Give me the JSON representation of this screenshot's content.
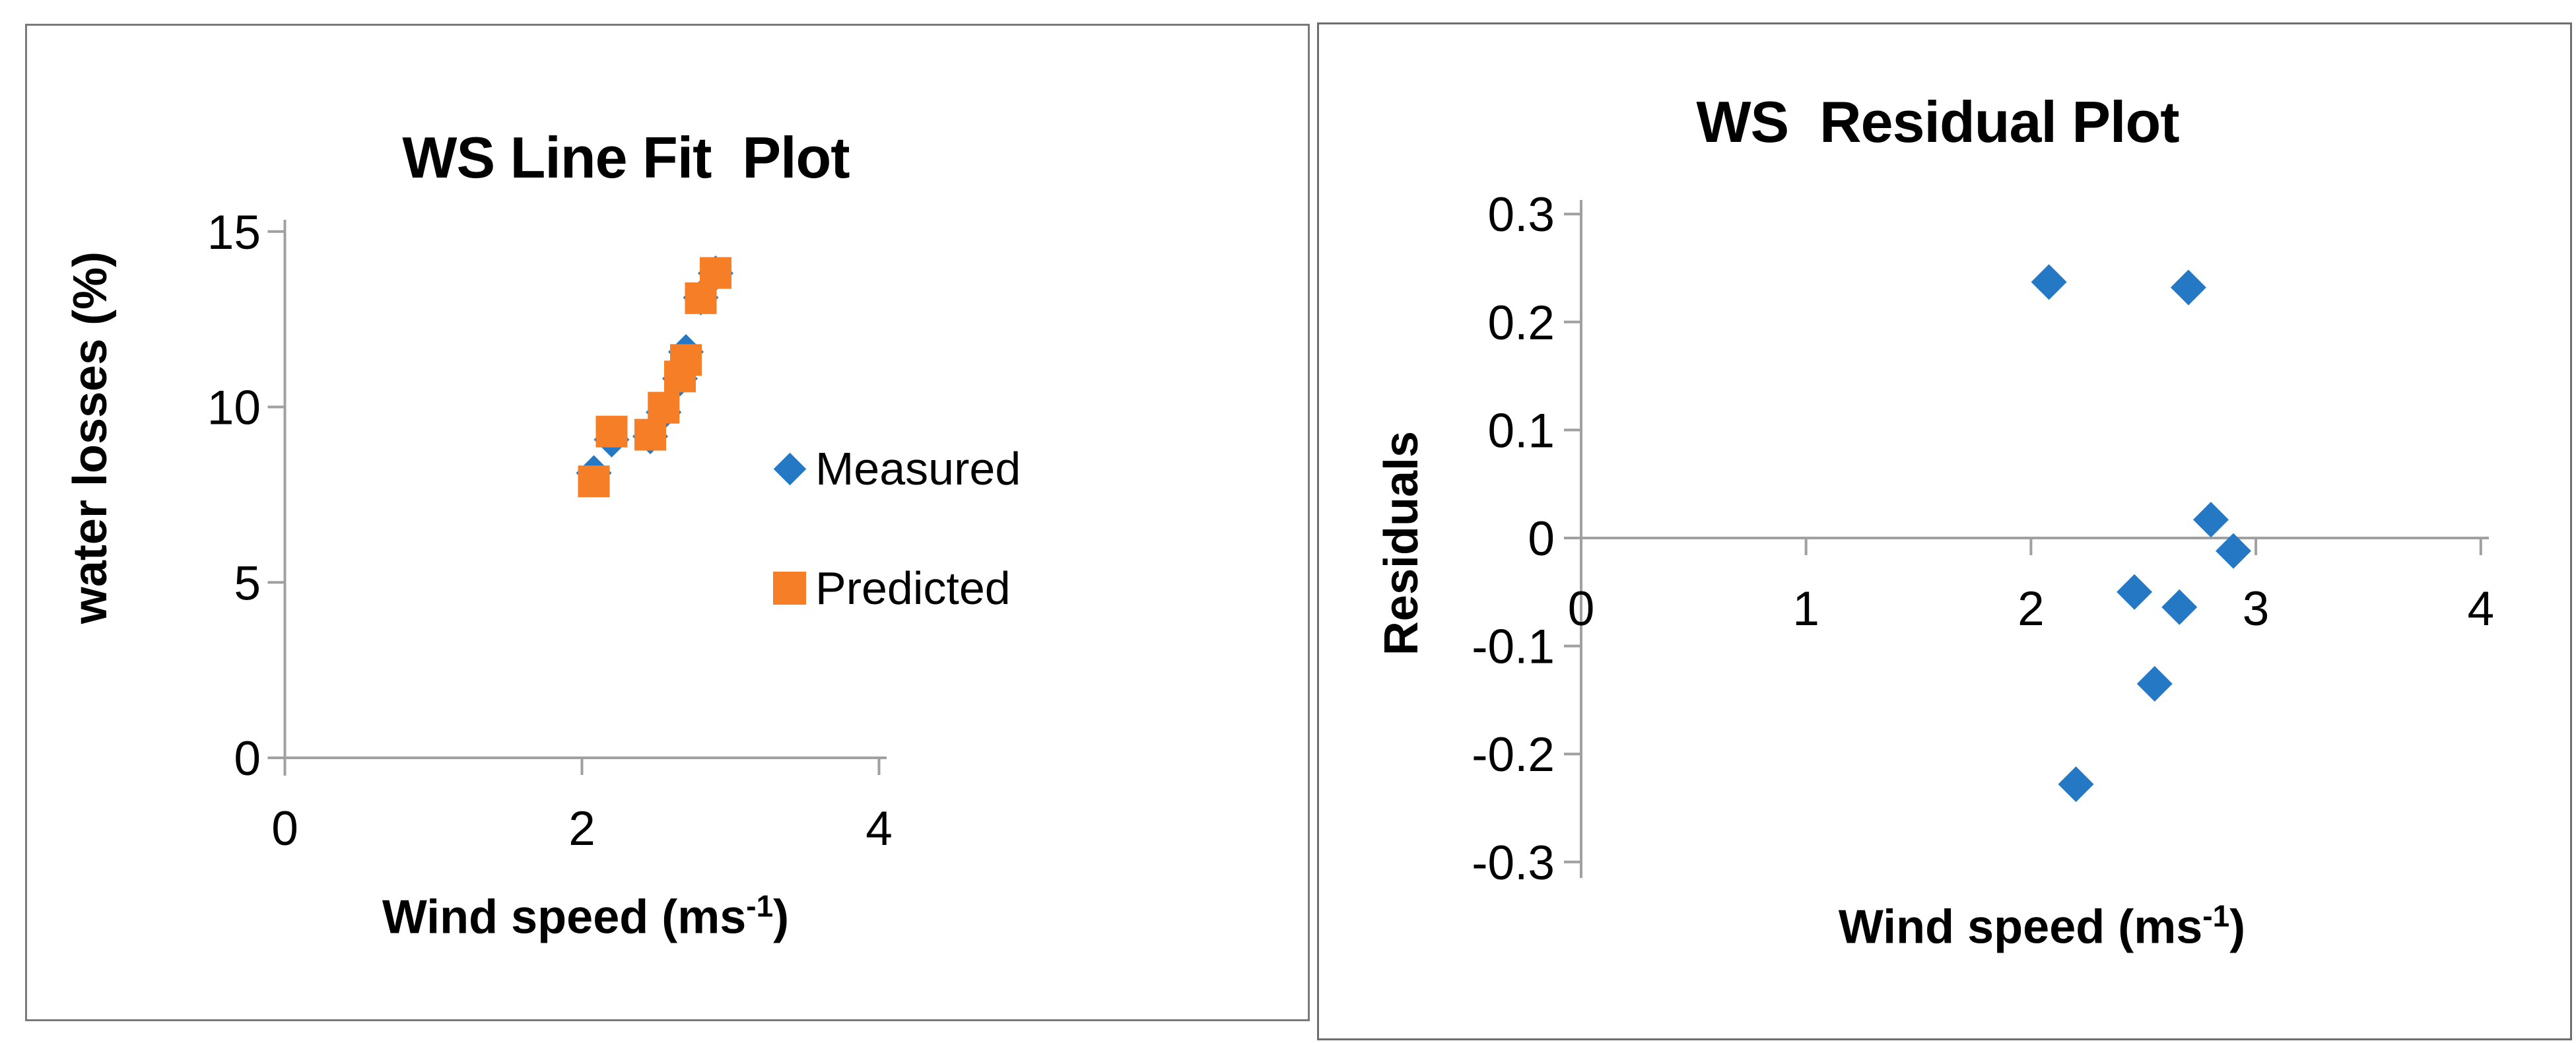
{
  "page": {
    "background": "#ffffff"
  },
  "colors": {
    "axis_line": "#a0a0a0",
    "measured_blue": "#2478c4",
    "predicted_orange": "#f57e27",
    "text": "#000000",
    "panel_border_left": "#7a7a7a",
    "panel_border_right": "#6e6e6e"
  },
  "chart_data": [
    {
      "type": "scatter",
      "title": "WS Line Fit  Plot",
      "ylabel": "water losses (%)",
      "xlabel_parts": {
        "text": "Wind speed (ms",
        "sup": "-1",
        "end": ")"
      },
      "xlim": [
        0,
        4
      ],
      "ylim": [
        0,
        15
      ],
      "xticks": [
        0,
        2,
        4
      ],
      "yticks": [
        0,
        5,
        10,
        15
      ],
      "grid": false,
      "legend_position": "inside-right",
      "x": [
        2.08,
        2.2,
        2.46,
        2.55,
        2.66,
        2.7,
        2.8,
        2.9
      ],
      "series": [
        {
          "name": "Measured",
          "marker": "diamond",
          "color": "#2478c4",
          "values": [
            8.12,
            9.07,
            9.16,
            9.85,
            10.81,
            11.57,
            13.12,
            13.81
          ]
        },
        {
          "name": "Predicted",
          "marker": "square",
          "color": "#f57e27",
          "values": [
            7.88,
            9.3,
            9.21,
            9.98,
            10.87,
            11.34,
            13.1,
            13.82
          ]
        }
      ]
    },
    {
      "type": "scatter",
      "title": "WS  Residual Plot",
      "ylabel": "Residuals",
      "xlabel_parts": {
        "text": "Wind speed (ms",
        "sup": "-1",
        "end": ")"
      },
      "xlim": [
        0,
        4
      ],
      "ylim": [
        -0.3,
        0.3
      ],
      "xticks": [
        0,
        1,
        2,
        3,
        4
      ],
      "yticks": [
        0.3,
        0.2,
        0.1,
        0,
        -0.1,
        -0.2,
        -0.3
      ],
      "grid": false,
      "legend_position": "none",
      "x": [
        2.08,
        2.2,
        2.46,
        2.55,
        2.66,
        2.7,
        2.8,
        2.9
      ],
      "series": [
        {
          "name": "Residuals",
          "marker": "diamond",
          "color": "#2478c4",
          "values": [
            0.237,
            -0.228,
            -0.05,
            -0.135,
            -0.064,
            0.232,
            0.017,
            -0.012
          ]
        }
      ]
    }
  ]
}
